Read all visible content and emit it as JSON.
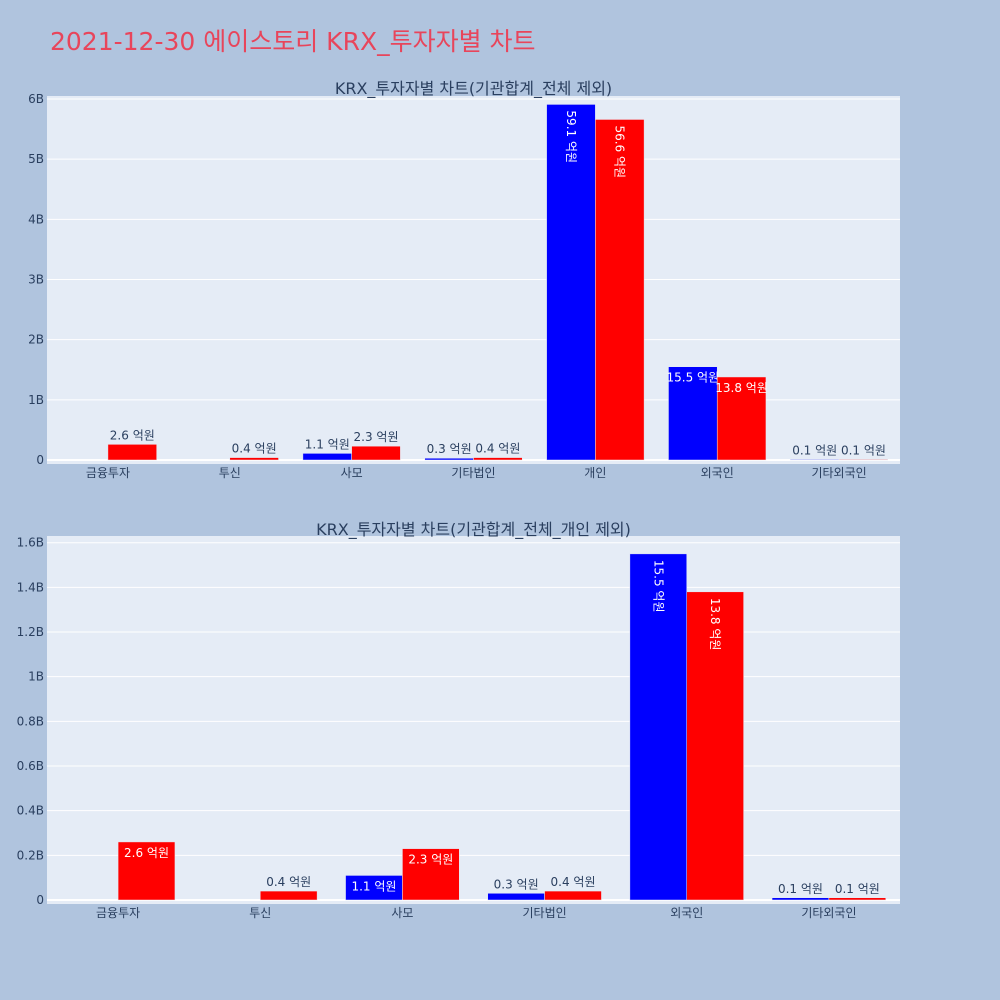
{
  "page_title": "2021-12-30 에이스토리 KRX_투자자별 차트",
  "colors": {
    "background": "#b0c4de",
    "plot_bg": "#e5ecf6",
    "title": "#e8455b",
    "series_a": "#0000ff",
    "series_b": "#ff0000"
  },
  "chart_data": [
    {
      "type": "bar",
      "title": "KRX_투자자별 차트(기관합계_전체 제외)",
      "categories": [
        "금융투자",
        "투신",
        "사모",
        "기타법인",
        "개인",
        "외국인",
        "기타외국인"
      ],
      "ylim": [
        0,
        6.05
      ],
      "yticks": [
        0,
        1,
        2,
        3,
        4,
        5,
        6
      ],
      "ytick_labels": [
        "0",
        "1B",
        "2B",
        "3B",
        "4B",
        "5B",
        "6B"
      ],
      "series": [
        {
          "values": [
            0,
            0,
            0.11,
            0.03,
            5.91,
            1.55,
            0.01
          ],
          "labels": [
            "",
            "",
            "1.1 억원",
            "0.3 억원",
            "59.1 억원",
            "15.5 억원",
            "0.1 억원"
          ]
        },
        {
          "values": [
            0.26,
            0.04,
            0.23,
            0.04,
            5.66,
            1.38,
            0.01
          ],
          "labels": [
            "2.6 억원",
            "0.4 억원",
            "2.3 억원",
            "0.4 억원",
            "56.6 억원",
            "13.8 억원",
            "0.1 억원"
          ]
        }
      ],
      "grid": true
    },
    {
      "type": "bar",
      "title": "KRX_투자자별 차트(기관합계_전체_개인 제외)",
      "categories": [
        "금융투자",
        "투신",
        "사모",
        "기타법인",
        "외국인",
        "기타외국인"
      ],
      "ylim": [
        0,
        1.63
      ],
      "yticks": [
        0,
        0.2,
        0.4,
        0.6,
        0.8,
        1.0,
        1.2,
        1.4,
        1.6
      ],
      "ytick_labels": [
        "0",
        "0.2B",
        "0.4B",
        "0.6B",
        "0.8B",
        "1B",
        "1.2B",
        "1.4B",
        "1.6B"
      ],
      "series": [
        {
          "values": [
            0,
            0,
            0.11,
            0.03,
            1.55,
            0.01
          ],
          "labels": [
            "",
            "",
            "1.1 억원",
            "0.3 억원",
            "15.5 억원",
            "0.1 억원"
          ]
        },
        {
          "values": [
            0.26,
            0.04,
            0.23,
            0.04,
            1.38,
            0.01
          ],
          "labels": [
            "2.6 억원",
            "0.4 억원",
            "2.3 억원",
            "0.4 억원",
            "13.8 억원",
            "0.1 억원"
          ]
        }
      ],
      "grid": true
    }
  ]
}
